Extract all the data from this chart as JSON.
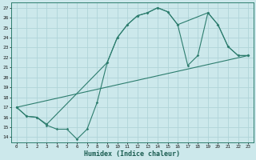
{
  "xlabel": "Humidex (Indice chaleur)",
  "bg_color": "#cce8eb",
  "grid_color": "#b0d4d8",
  "line_color": "#2d7d6e",
  "xlim": [
    -0.5,
    23.5
  ],
  "ylim": [
    13.5,
    27.5
  ],
  "xticks": [
    0,
    1,
    2,
    3,
    4,
    5,
    6,
    7,
    8,
    9,
    10,
    11,
    12,
    13,
    14,
    15,
    16,
    17,
    18,
    19,
    20,
    21,
    22,
    23
  ],
  "yticks": [
    14,
    15,
    16,
    17,
    18,
    19,
    20,
    21,
    22,
    23,
    24,
    25,
    26,
    27
  ],
  "line1_x": [
    0,
    1,
    2,
    3,
    4,
    5,
    6,
    7,
    8,
    9,
    10,
    11,
    12,
    13,
    14,
    15,
    16,
    17,
    18,
    19,
    20,
    21,
    22,
    23
  ],
  "line1_y": [
    17,
    16.1,
    16.0,
    15.2,
    14.8,
    14.8,
    13.8,
    14.8,
    17.5,
    21.5,
    24.0,
    25.3,
    26.2,
    26.5,
    27.0,
    26.6,
    25.3,
    21.2,
    22.2,
    26.5,
    25.3,
    23.1,
    22.2,
    22.2
  ],
  "line2_x": [
    0,
    1,
    2,
    3,
    9,
    10,
    11,
    12,
    13,
    14,
    15,
    16,
    19,
    20,
    21,
    22,
    23
  ],
  "line2_y": [
    17,
    16.1,
    16.0,
    15.3,
    21.5,
    24.0,
    25.3,
    26.2,
    26.5,
    27.0,
    26.6,
    25.3,
    26.5,
    25.3,
    23.1,
    22.2,
    22.2
  ],
  "line3_x": [
    0,
    23
  ],
  "line3_y": [
    17,
    22.2
  ]
}
